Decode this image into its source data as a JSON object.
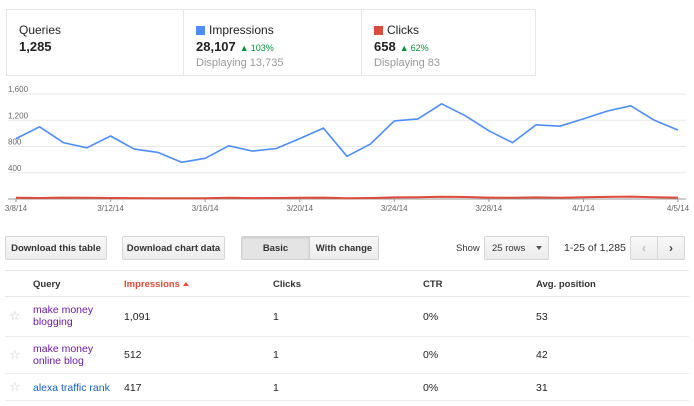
{
  "summary": {
    "queries": {
      "label": "Queries",
      "value": "1,285"
    },
    "impressions": {
      "label": "Impressions",
      "value": "28,107",
      "delta": "103%",
      "sub": "Displaying 13,735",
      "color": "#4d8df7"
    },
    "clicks": {
      "label": "Clicks",
      "value": "658",
      "delta": "62%",
      "sub": "Displaying 83",
      "color": "#dd4b39"
    }
  },
  "chart_data": {
    "type": "line",
    "x": [
      "3/8/14",
      "3/9/14",
      "3/10/14",
      "3/11/14",
      "3/12/14",
      "3/13/14",
      "3/14/14",
      "3/15/14",
      "3/16/14",
      "3/17/14",
      "3/18/14",
      "3/19/14",
      "3/20/14",
      "3/21/14",
      "3/22/14",
      "3/23/14",
      "3/24/14",
      "3/25/14",
      "3/26/14",
      "3/27/14",
      "3/28/14",
      "3/29/14",
      "3/30/14",
      "3/31/14",
      "4/1/14",
      "4/2/14",
      "4/3/14",
      "4/4/14",
      "4/5/14"
    ],
    "x_tick_labels": [
      "3/8/14",
      "3/12/14",
      "3/16/14",
      "3/20/14",
      "3/24/14",
      "3/28/14",
      "4/1/14",
      "4/5/14"
    ],
    "y_tick_labels": [
      "400",
      "800",
      "1,200",
      "1,600"
    ],
    "ylim": [
      0,
      1600
    ],
    "series": [
      {
        "name": "Impressions",
        "color": "#4d8df7",
        "values": [
          920,
          1100,
          860,
          780,
          960,
          760,
          710,
          560,
          620,
          810,
          730,
          770,
          920,
          1080,
          650,
          840,
          1190,
          1220,
          1450,
          1270,
          1040,
          860,
          1130,
          1110,
          1220,
          1340,
          1420,
          1200,
          1050
        ]
      },
      {
        "name": "Clicks",
        "color": "#dd4b39",
        "values": [
          20,
          15,
          22,
          18,
          16,
          14,
          12,
          10,
          12,
          18,
          14,
          16,
          18,
          22,
          10,
          15,
          25,
          28,
          35,
          30,
          22,
          18,
          24,
          20,
          28,
          32,
          36,
          26,
          22
        ]
      }
    ]
  },
  "toolbar": {
    "download_table": "Download this table",
    "download_chart": "Download chart data",
    "basic": "Basic",
    "with_change": "With change",
    "show_label": "Show",
    "rows_select": "25 rows",
    "range": "1-25 of 1,285",
    "prev": "‹",
    "next": "›"
  },
  "table": {
    "headers": {
      "query": "Query",
      "impressions": "Impressions",
      "clicks": "Clicks",
      "ctr": "CTR",
      "avg_position": "Avg. position"
    },
    "rows": [
      {
        "query_line1": "make money",
        "query_line2": "blogging",
        "impressions": "1,091",
        "clicks": "1",
        "ctr": "0%",
        "avg_position": "53"
      },
      {
        "query_line1": "make money",
        "query_line2": "online blog",
        "impressions": "512",
        "clicks": "1",
        "ctr": "0%",
        "avg_position": "42"
      },
      {
        "query_line1": "alexa traffic rank",
        "query_line2": "",
        "impressions": "417",
        "clicks": "1",
        "ctr": "0%",
        "avg_position": "31"
      }
    ],
    "star_icon": "star-icon"
  }
}
